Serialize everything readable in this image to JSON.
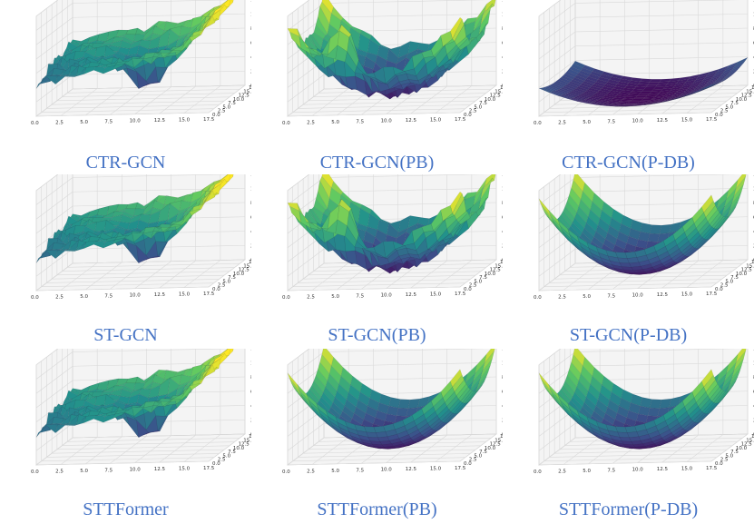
{
  "figure": {
    "colormap": [
      "#440154",
      "#3b528b",
      "#21918c",
      "#5ec962",
      "#fde725"
    ]
  },
  "chart_data": [
    {
      "type": "surface",
      "model": "CTR-GCN",
      "caption": "CTR-GCN",
      "xticks": [
        "0.0",
        "2.5",
        "5.0",
        "7.5",
        "10.0",
        "12.5",
        "15.0",
        "17.5"
      ],
      "yticks": [
        "0.0",
        "2.5",
        "5.0",
        "7.5",
        "10.0",
        "12.5",
        "15.0",
        "17.5"
      ],
      "zticks": [
        "0",
        "2",
        "4",
        "6",
        "8",
        "10",
        "12",
        "14"
      ],
      "zlim": [
        0,
        14
      ],
      "shape": "rough-tilted"
    },
    {
      "type": "surface",
      "model": "CTR-GCN(PB)",
      "caption": "CTR-GCN(PB)",
      "xticks": [
        "0.0",
        "2.5",
        "5.0",
        "7.5",
        "10.0",
        "12.5",
        "15.0",
        "17.5"
      ],
      "yticks": [
        "0.0",
        "2.5",
        "5.0",
        "7.5",
        "10.0",
        "12.5",
        "15.0",
        "17.5"
      ],
      "zticks": [
        "0",
        "2",
        "4",
        "6",
        "8",
        "10",
        "12",
        "14"
      ],
      "zlim": [
        0,
        14
      ],
      "shape": "rough-bowl"
    },
    {
      "type": "surface",
      "model": "CTR-GCN(P-DB)",
      "caption": "CTR-GCN(P-DB)",
      "xticks": [
        "0.0",
        "2.5",
        "5.0",
        "7.5",
        "10.0",
        "12.5",
        "15.0",
        "17.5"
      ],
      "yticks": [
        "0.0",
        "2.5",
        "5.0",
        "7.5",
        "10.0",
        "12.5",
        "15.0",
        "17.5"
      ],
      "zticks": [
        "0",
        "2",
        "4",
        "6",
        "8",
        "10",
        "12",
        "14"
      ],
      "zlim": [
        0,
        14
      ],
      "shape": "flat-bowl"
    },
    {
      "type": "surface",
      "model": "ST-GCN",
      "caption": "ST-GCN",
      "xticks": [
        "0.0",
        "2.5",
        "5.0",
        "7.5",
        "10.0",
        "12.5",
        "15.0",
        "17.5"
      ],
      "yticks": [
        "0.0",
        "2.5",
        "5.0",
        "7.5",
        "10.0",
        "12.5",
        "15.0",
        "17.5"
      ],
      "zticks": [
        "0",
        "2",
        "4",
        "6",
        "8",
        "10",
        "12",
        "14"
      ],
      "zlim": [
        0,
        14
      ],
      "shape": "rough-tilted"
    },
    {
      "type": "surface",
      "model": "ST-GCN(PB)",
      "caption": "ST-GCN(PB)",
      "xticks": [
        "0.0",
        "2.5",
        "5.0",
        "7.5",
        "10.0",
        "12.5",
        "15.0",
        "17.5"
      ],
      "yticks": [
        "0.0",
        "2.5",
        "5.0",
        "7.5",
        "10.0",
        "12.5",
        "15.0",
        "17.5"
      ],
      "zticks": [
        "0",
        "2",
        "4",
        "6",
        "8",
        "10",
        "12",
        "14"
      ],
      "zlim": [
        0,
        14
      ],
      "shape": "rough-bowl"
    },
    {
      "type": "surface",
      "model": "ST-GCN(P-DB)",
      "caption": "ST-GCN(P-DB)",
      "xticks": [
        "0.0",
        "2.5",
        "5.0",
        "7.5",
        "10.0",
        "12.5",
        "15.0",
        "17.5"
      ],
      "yticks": [
        "0.0",
        "2.5",
        "5.0",
        "7.5",
        "10.0",
        "12.5",
        "15.0",
        "17.5"
      ],
      "zticks": [
        "0",
        "2",
        "4",
        "6",
        "8",
        "10",
        "12",
        "14"
      ],
      "zlim": [
        0,
        14
      ],
      "shape": "smooth-bowl"
    },
    {
      "type": "surface",
      "model": "STTFormer",
      "caption": "STTFormer",
      "xticks": [
        "0.0",
        "2.5",
        "5.0",
        "7.5",
        "10.0",
        "12.5",
        "15.0",
        "17.5"
      ],
      "yticks": [
        "0.0",
        "2.5",
        "5.0",
        "7.5",
        "10.0",
        "12.5",
        "15.0",
        "17.5"
      ],
      "zticks": [
        "0",
        "2",
        "4",
        "6",
        "8",
        "10",
        "12",
        "14"
      ],
      "zlim": [
        0,
        14
      ],
      "shape": "rough-tilted"
    },
    {
      "type": "surface",
      "model": "STTFormer(PB)",
      "caption": "STTFormer(PB)",
      "xticks": [
        "0.0",
        "2.5",
        "5.0",
        "7.5",
        "10.0",
        "12.5",
        "15.0",
        "17.5"
      ],
      "yticks": [
        "0.0",
        "2.5",
        "5.0",
        "7.5",
        "10.0",
        "12.5",
        "15.0",
        "17.5"
      ],
      "zticks": [
        "0",
        "2",
        "4",
        "6",
        "8",
        "10",
        "12",
        "14"
      ],
      "zlim": [
        0,
        14
      ],
      "shape": "smooth-bowl"
    },
    {
      "type": "surface",
      "model": "STTFormer(P-DB)",
      "caption": "STTFormer(P-DB)",
      "xticks": [
        "0.0",
        "2.5",
        "5.0",
        "7.5",
        "10.0",
        "12.5",
        "15.0",
        "17.5"
      ],
      "yticks": [
        "0.0",
        "2.5",
        "5.0",
        "7.5",
        "10.0",
        "12.5",
        "15.0",
        "17.5"
      ],
      "zticks": [
        "0",
        "2",
        "4",
        "6",
        "8",
        "10",
        "12",
        "14"
      ],
      "zlim": [
        0,
        14
      ],
      "shape": "smooth-bowl"
    }
  ]
}
